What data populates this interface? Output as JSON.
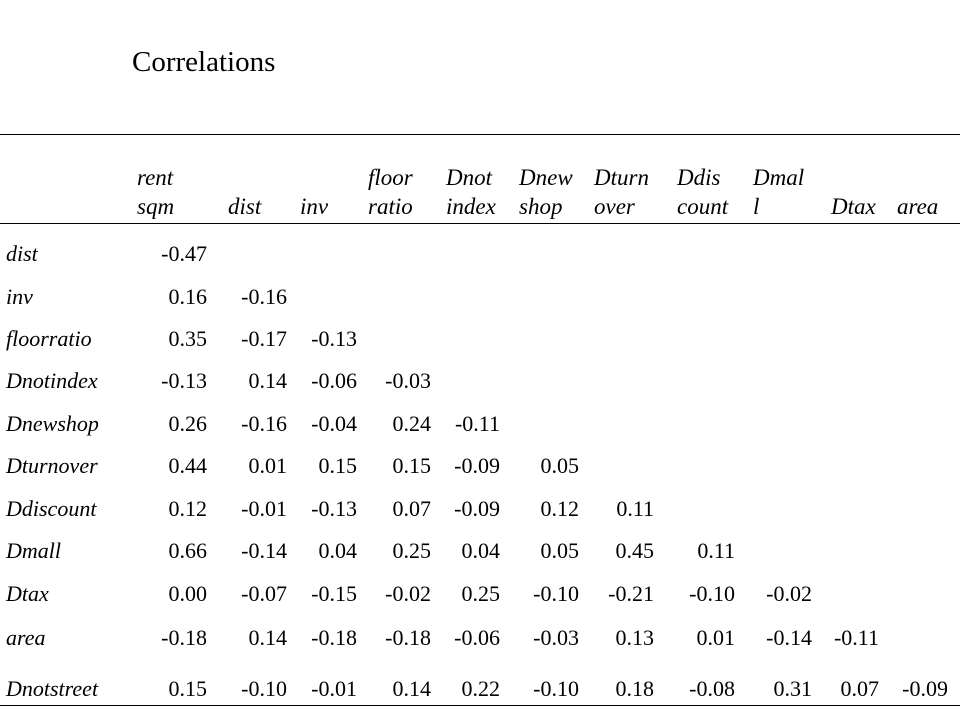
{
  "title": "Correlations",
  "columns": [
    [
      "rent",
      "sqm"
    ],
    [
      "",
      "dist"
    ],
    [
      "",
      "inv"
    ],
    [
      "floor",
      "ratio"
    ],
    [
      "Dnot",
      "index"
    ],
    [
      "Dnew",
      "shop"
    ],
    [
      "Dturn",
      "over"
    ],
    [
      "Ddis",
      "count"
    ],
    [
      "Dmal",
      "l"
    ],
    [
      "",
      "Dtax"
    ],
    [
      "",
      "area"
    ]
  ],
  "rows": [
    {
      "label": "dist",
      "values": [
        "-0.47"
      ]
    },
    {
      "label": "inv",
      "values": [
        "0.16",
        "-0.16"
      ]
    },
    {
      "label": "floorratio",
      "values": [
        "0.35",
        "-0.17",
        "-0.13"
      ]
    },
    {
      "label": "Dnotindex",
      "values": [
        "-0.13",
        "0.14",
        "-0.06",
        "-0.03"
      ]
    },
    {
      "label": "Dnewshop",
      "values": [
        "0.26",
        "-0.16",
        "-0.04",
        "0.24",
        "-0.11"
      ]
    },
    {
      "label": "Dturnover",
      "values": [
        "0.44",
        "0.01",
        "0.15",
        "0.15",
        "-0.09",
        "0.05"
      ]
    },
    {
      "label": "Ddiscount",
      "values": [
        "0.12",
        "-0.01",
        "-0.13",
        "0.07",
        "-0.09",
        "0.12",
        "0.11"
      ]
    },
    {
      "label": "Dmall",
      "values": [
        "0.66",
        "-0.14",
        "0.04",
        "0.25",
        "0.04",
        "0.05",
        "0.45",
        "0.11"
      ]
    },
    {
      "label": "Dtax",
      "values": [
        "0.00",
        "-0.07",
        "-0.15",
        "-0.02",
        "0.25",
        "-0.10",
        "-0.21",
        "-0.10",
        "-0.02"
      ]
    },
    {
      "label": "area",
      "values": [
        "-0.18",
        "0.14",
        "-0.18",
        "-0.18",
        "-0.06",
        "-0.03",
        "0.13",
        "0.01",
        "-0.14",
        "-0.11"
      ]
    },
    {
      "label": "Dnotstreet",
      "values": [
        "0.15",
        "-0.10",
        "-0.01",
        "0.14",
        "0.22",
        "-0.10",
        "0.18",
        "-0.08",
        "0.31",
        "0.07",
        "-0.09"
      ]
    }
  ]
}
